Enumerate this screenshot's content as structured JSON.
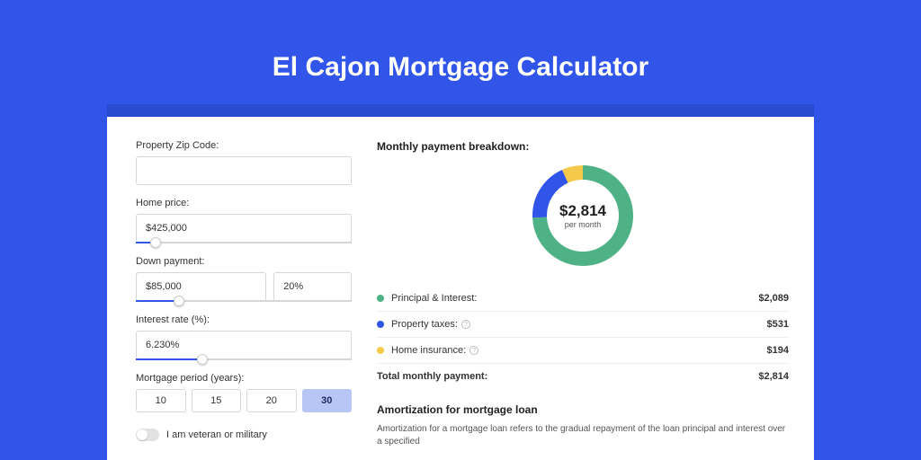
{
  "page": {
    "title": "El Cajon Mortgage Calculator",
    "background_color": "#3155e8",
    "shadow_color": "#2a4ad0",
    "panel_color": "#ffffff"
  },
  "form": {
    "zip": {
      "label": "Property Zip Code:",
      "value": ""
    },
    "home_price": {
      "label": "Home price:",
      "value": "$425,000",
      "slider_pct": 9
    },
    "down_payment": {
      "label": "Down payment:",
      "amount": "$85,000",
      "percent": "20%",
      "slider_pct": 20
    },
    "interest_rate": {
      "label": "Interest rate (%):",
      "value": "6.230%",
      "slider_pct": 31
    },
    "mortgage_period": {
      "label": "Mortgage period (years):",
      "options": [
        "10",
        "15",
        "20",
        "30"
      ],
      "selected_index": 3
    },
    "veteran": {
      "label": "I am veteran or military",
      "value": false
    }
  },
  "breakdown": {
    "title": "Monthly payment breakdown:",
    "center_amount": "$2,814",
    "center_sub": "per month",
    "donut": {
      "segments": [
        {
          "label": "Principal & Interest:",
          "color": "#4fb286",
          "value": "$2,089",
          "pct": 74.2,
          "info": false
        },
        {
          "label": "Property taxes:",
          "color": "#3155e8",
          "value": "$531",
          "pct": 18.9,
          "info": true
        },
        {
          "label": "Home insurance:",
          "color": "#f5c94a",
          "value": "$194",
          "pct": 6.9,
          "info": true
        }
      ],
      "ring_width": 16,
      "radius": 48
    },
    "total_label": "Total monthly payment:",
    "total_value": "$2,814"
  },
  "amortization": {
    "title": "Amortization for mortgage loan",
    "body": "Amortization for a mortgage loan refers to the gradual repayment of the loan principal and interest over a specified"
  }
}
